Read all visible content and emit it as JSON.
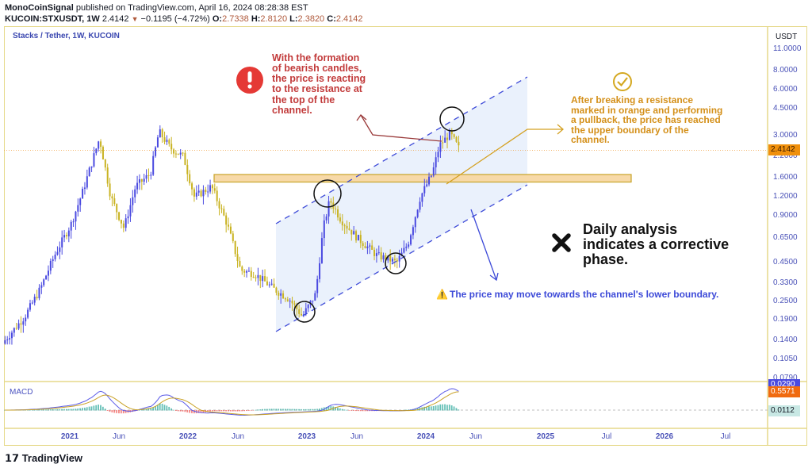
{
  "header": {
    "author": "MonoCoinSignal",
    "published": "published on TradingView.com, April 16, 2024 08:28:38 EST",
    "symbol": "KUCOIN:STXUSDT, 1W",
    "last": "2.4142",
    "change": "−0.1195 (−4.72%)",
    "o_label": "O:",
    "o": "2.7338",
    "h_label": "H:",
    "h": "2.8120",
    "l_label": "L:",
    "l": "2.3820",
    "c_label": "C:",
    "c": "2.4142"
  },
  "legend": "Stacks / Tether, 1W, KUCOIN",
  "macd_label": "MACD",
  "price_axis": {
    "unit": "USDT",
    "ticks": [
      "11.0000",
      "8.0000",
      "6.0000",
      "4.5000",
      "3.0000",
      "2.2000",
      "1.6000",
      "1.2000",
      "0.9000",
      "0.6500",
      "0.4500",
      "0.3300",
      "0.2500",
      "0.1900",
      "0.1400",
      "0.1050",
      "0.0790"
    ],
    "current_price_tag": "2.4142",
    "macd_tags": [
      "0.0290",
      "0.5571",
      "0.0112"
    ]
  },
  "time_axis": [
    {
      "label": "2021",
      "year": true
    },
    {
      "label": "Jun",
      "year": false
    },
    {
      "label": "2022",
      "year": true
    },
    {
      "label": "Jun",
      "year": false
    },
    {
      "label": "2023",
      "year": true
    },
    {
      "label": "Jun",
      "year": false
    },
    {
      "label": "2024",
      "year": true
    },
    {
      "label": "Jun",
      "year": false
    },
    {
      "label": "2025",
      "year": true
    },
    {
      "label": "Jul",
      "year": false
    },
    {
      "label": "2026",
      "year": true
    },
    {
      "label": "Jul",
      "year": false
    }
  ],
  "annotations": {
    "red_note": "With the formation of bearish candles, the price is reacting to the resistance at the top of the channel.",
    "orange_note": "After breaking a resistance marked in orange and performing a pullback, the price has reached the upper boundary of the channel.",
    "black_note": "Daily analysis indicates a corrective phase.",
    "blue_note": "The price may move towards the channel's lower boundary.",
    "warning_glyph": "⚠️"
  },
  "icons": [
    "alert-exclamation-icon",
    "check-circle-icon",
    "x-mark-icon",
    "warning-icon",
    "tradingview-logo"
  ],
  "colors": {
    "up": "#4a4ae0",
    "down": "#c9b322",
    "channel": "#3d4ad8",
    "zone": "#f7d9a8",
    "zone_border": "#c8a428",
    "price_tag": "#f0900c",
    "macd_line": "#5b5be8",
    "signal_line": "#c9a227",
    "hist_pos": "#26a69a",
    "hist_neg": "#ef5350"
  },
  "footer": {
    "brand": "TradingView"
  },
  "chart_data": {
    "type": "candlestick",
    "title": "Stacks / Tether, 1W, KUCOIN",
    "y_scale": "log",
    "ylim": [
      0.079,
      11.0
    ],
    "xlim": [
      "2020-06",
      "2026-10"
    ],
    "grid": false,
    "approx_closes": [
      [
        "2020-06-15",
        0.14
      ],
      [
        "2020-08-15",
        0.2
      ],
      [
        "2020-10-01",
        0.3
      ],
      [
        "2020-11-15",
        0.5
      ],
      [
        "2021-01-05",
        0.8
      ],
      [
        "2021-02-10",
        1.3
      ],
      [
        "2021-04-01",
        2.9
      ],
      [
        "2021-05-05",
        1.2
      ],
      [
        "2021-06-15",
        0.75
      ],
      [
        "2021-07-20",
        1.4
      ],
      [
        "2021-09-05",
        1.7
      ],
      [
        "2021-10-01",
        3.2
      ],
      [
        "2021-11-05",
        2.5
      ],
      [
        "2021-12-15",
        2.2
      ],
      [
        "2022-01-18",
        1.2
      ],
      [
        "2022-03-10",
        1.4
      ],
      [
        "2022-04-27",
        0.8
      ],
      [
        "2022-06-08",
        0.4
      ],
      [
        "2022-07-20",
        0.38
      ],
      [
        "2022-09-20",
        0.3
      ],
      [
        "2022-11-05",
        0.26
      ],
      [
        "2022-12-15",
        0.2
      ],
      [
        "2023-01-25",
        0.28
      ],
      [
        "2023-02-18",
        0.75
      ],
      [
        "2023-03-08",
        1.15
      ],
      [
        "2023-04-12",
        0.85
      ],
      [
        "2023-06-01",
        0.65
      ],
      [
        "2023-07-30",
        0.5
      ],
      [
        "2023-10-01",
        0.45
      ],
      [
        "2023-11-05",
        0.6
      ],
      [
        "2023-12-12",
        1.2
      ],
      [
        "2024-01-18",
        1.7
      ],
      [
        "2024-02-10",
        2.6
      ],
      [
        "2024-03-12",
        3.1
      ],
      [
        "2024-04-12",
        2.4142
      ]
    ],
    "resistance_zone": [
      1.5,
      1.68
    ],
    "indicator": "MACD"
  }
}
